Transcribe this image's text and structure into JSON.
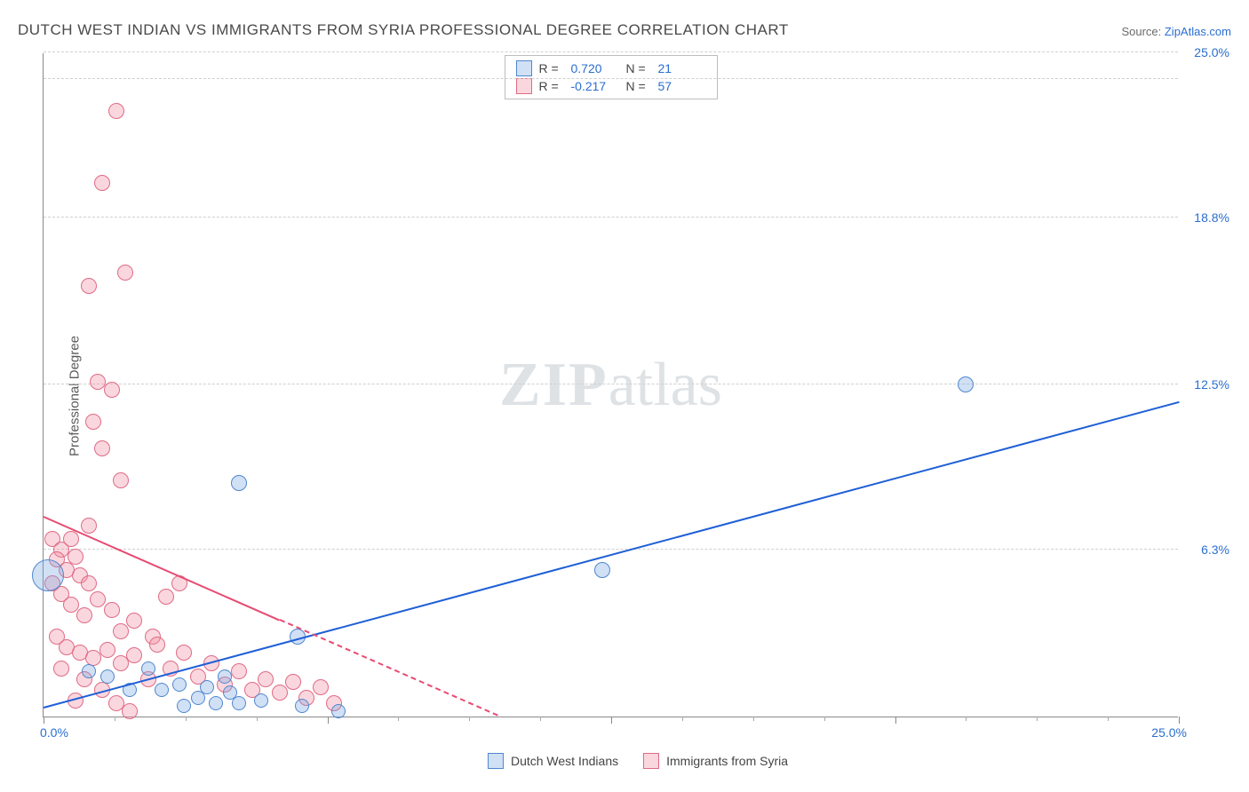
{
  "title": "DUTCH WEST INDIAN VS IMMIGRANTS FROM SYRIA PROFESSIONAL DEGREE CORRELATION CHART",
  "source_label": "Source: ",
  "source_name": "ZipAtlas.com",
  "ylabel": "Professional Degree",
  "watermark": {
    "bold": "ZIP",
    "rest": "atlas"
  },
  "chart": {
    "xlim": [
      0,
      25
    ],
    "ylim": [
      0,
      25
    ],
    "x0_label": "0.0%",
    "xmax_label": "25.0%",
    "yticks": [
      {
        "v": 6.3,
        "label": "6.3%"
      },
      {
        "v": 12.5,
        "label": "12.5%"
      },
      {
        "v": 18.8,
        "label": "18.8%"
      },
      {
        "v": 25.0,
        "label": "25.0%"
      }
    ],
    "grid_top_extra": 24.0,
    "x_major_step": 6.25,
    "x_minor_step": 1.5625,
    "grid_color": "#cfcfcf",
    "axis_color": "#888888",
    "background": "#ffffff"
  },
  "series": {
    "a": {
      "label": "Dutch West Indians",
      "fill": "rgba(120,165,225,0.35)",
      "stroke": "#4f87cf",
      "trend_color": "#1e5fd6",
      "R": "0.720",
      "N": "21",
      "points": [
        {
          "x": 0.1,
          "y": 5.3,
          "r": 18
        },
        {
          "x": 4.3,
          "y": 8.8,
          "r": 9
        },
        {
          "x": 12.3,
          "y": 5.5,
          "r": 9
        },
        {
          "x": 20.3,
          "y": 12.5,
          "r": 9
        },
        {
          "x": 5.6,
          "y": 3.0,
          "r": 9
        },
        {
          "x": 1.0,
          "y": 1.7,
          "r": 8
        },
        {
          "x": 1.4,
          "y": 1.5,
          "r": 8
        },
        {
          "x": 1.9,
          "y": 1.0,
          "r": 8
        },
        {
          "x": 2.3,
          "y": 1.8,
          "r": 8
        },
        {
          "x": 2.6,
          "y": 1.0,
          "r": 8
        },
        {
          "x": 3.0,
          "y": 1.2,
          "r": 8
        },
        {
          "x": 3.1,
          "y": 0.4,
          "r": 8
        },
        {
          "x": 3.4,
          "y": 0.7,
          "r": 8
        },
        {
          "x": 3.6,
          "y": 1.1,
          "r": 8
        },
        {
          "x": 3.8,
          "y": 0.5,
          "r": 8
        },
        {
          "x": 4.1,
          "y": 0.9,
          "r": 8
        },
        {
          "x": 4.3,
          "y": 0.5,
          "r": 8
        },
        {
          "x": 4.8,
          "y": 0.6,
          "r": 8
        },
        {
          "x": 5.7,
          "y": 0.4,
          "r": 8
        },
        {
          "x": 6.5,
          "y": 0.2,
          "r": 8
        },
        {
          "x": 4.0,
          "y": 1.5,
          "r": 8
        }
      ],
      "trend": {
        "x1": 0,
        "y1": 0.3,
        "x2": 25,
        "y2": 11.8,
        "dashed_after_x": null
      }
    },
    "b": {
      "label": "Immigrants from Syria",
      "fill": "rgba(240,140,160,0.35)",
      "stroke": "#e06a85",
      "trend_color": "#e84a72",
      "R": "-0.217",
      "N": "57",
      "points": [
        {
          "x": 1.6,
          "y": 22.8,
          "r": 9
        },
        {
          "x": 1.3,
          "y": 20.1,
          "r": 9
        },
        {
          "x": 1.0,
          "y": 16.2,
          "r": 9
        },
        {
          "x": 1.8,
          "y": 16.7,
          "r": 9
        },
        {
          "x": 1.2,
          "y": 12.6,
          "r": 9
        },
        {
          "x": 1.5,
          "y": 12.3,
          "r": 9
        },
        {
          "x": 1.1,
          "y": 11.1,
          "r": 9
        },
        {
          "x": 1.3,
          "y": 10.1,
          "r": 9
        },
        {
          "x": 1.7,
          "y": 8.9,
          "r": 9
        },
        {
          "x": 1.0,
          "y": 7.2,
          "r": 9
        },
        {
          "x": 0.2,
          "y": 6.7,
          "r": 9
        },
        {
          "x": 0.4,
          "y": 6.3,
          "r": 9
        },
        {
          "x": 0.6,
          "y": 6.7,
          "r": 9
        },
        {
          "x": 0.3,
          "y": 5.9,
          "r": 9
        },
        {
          "x": 0.5,
          "y": 5.5,
          "r": 9
        },
        {
          "x": 0.7,
          "y": 6.0,
          "r": 9
        },
        {
          "x": 0.8,
          "y": 5.3,
          "r": 9
        },
        {
          "x": 0.2,
          "y": 5.0,
          "r": 9
        },
        {
          "x": 0.4,
          "y": 4.6,
          "r": 9
        },
        {
          "x": 1.0,
          "y": 5.0,
          "r": 9
        },
        {
          "x": 1.2,
          "y": 4.4,
          "r": 9
        },
        {
          "x": 0.6,
          "y": 4.2,
          "r": 9
        },
        {
          "x": 0.9,
          "y": 3.8,
          "r": 9
        },
        {
          "x": 1.5,
          "y": 4.0,
          "r": 9
        },
        {
          "x": 1.7,
          "y": 3.2,
          "r": 9
        },
        {
          "x": 2.0,
          "y": 3.6,
          "r": 9
        },
        {
          "x": 2.4,
          "y": 3.0,
          "r": 9
        },
        {
          "x": 2.7,
          "y": 4.5,
          "r": 9
        },
        {
          "x": 3.0,
          "y": 5.0,
          "r": 9
        },
        {
          "x": 0.3,
          "y": 3.0,
          "r": 9
        },
        {
          "x": 0.5,
          "y": 2.6,
          "r": 9
        },
        {
          "x": 0.8,
          "y": 2.4,
          "r": 9
        },
        {
          "x": 1.1,
          "y": 2.2,
          "r": 9
        },
        {
          "x": 1.4,
          "y": 2.5,
          "r": 9
        },
        {
          "x": 1.7,
          "y": 2.0,
          "r": 9
        },
        {
          "x": 2.0,
          "y": 2.3,
          "r": 9
        },
        {
          "x": 2.3,
          "y": 1.4,
          "r": 9
        },
        {
          "x": 2.5,
          "y": 2.7,
          "r": 9
        },
        {
          "x": 2.8,
          "y": 1.8,
          "r": 9
        },
        {
          "x": 3.1,
          "y": 2.4,
          "r": 9
        },
        {
          "x": 3.4,
          "y": 1.5,
          "r": 9
        },
        {
          "x": 3.7,
          "y": 2.0,
          "r": 9
        },
        {
          "x": 4.0,
          "y": 1.2,
          "r": 9
        },
        {
          "x": 4.3,
          "y": 1.7,
          "r": 9
        },
        {
          "x": 4.6,
          "y": 1.0,
          "r": 9
        },
        {
          "x": 4.9,
          "y": 1.4,
          "r": 9
        },
        {
          "x": 5.2,
          "y": 0.9,
          "r": 9
        },
        {
          "x": 5.5,
          "y": 1.3,
          "r": 9
        },
        {
          "x": 5.8,
          "y": 0.7,
          "r": 9
        },
        {
          "x": 6.1,
          "y": 1.1,
          "r": 9
        },
        {
          "x": 6.4,
          "y": 0.5,
          "r": 9
        },
        {
          "x": 1.9,
          "y": 0.2,
          "r": 9
        },
        {
          "x": 0.9,
          "y": 1.4,
          "r": 9
        },
        {
          "x": 1.3,
          "y": 1.0,
          "r": 9
        },
        {
          "x": 0.4,
          "y": 1.8,
          "r": 9
        },
        {
          "x": 0.7,
          "y": 0.6,
          "r": 9
        },
        {
          "x": 1.6,
          "y": 0.5,
          "r": 9
        }
      ],
      "trend": {
        "x1": 0,
        "y1": 7.5,
        "x2": 10.0,
        "y2": 0.0,
        "dashed_after_x": 5.2
      }
    }
  },
  "stats_box": {
    "R_label": "R  =",
    "N_label": "N  ="
  }
}
